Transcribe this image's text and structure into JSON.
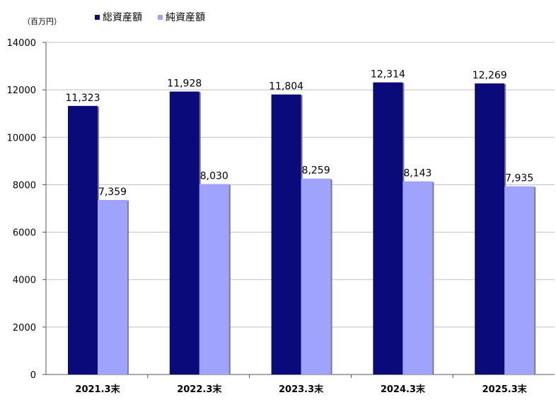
{
  "chart_data": {
    "type": "bar",
    "unit_label": "（百万円）",
    "categories": [
      "2021.3末",
      "2022.3末",
      "2023.3末",
      "2024.3末",
      "2025.3末"
    ],
    "series": [
      {
        "name": "総資産額",
        "color": "#0b0a7a",
        "values": [
          11323,
          11928,
          11804,
          12314,
          12269
        ],
        "labels": [
          "11,323",
          "11,928",
          "11,804",
          "12,314",
          "12,269"
        ]
      },
      {
        "name": "純資産額",
        "color": "#a0a3fb",
        "values": [
          7359,
          8030,
          8259,
          8143,
          7935
        ],
        "labels": [
          "7,359",
          "8,030",
          "8,259",
          "8,143",
          "7,935"
        ]
      }
    ],
    "ylim": [
      0,
      14000
    ],
    "yticks": [
      "0",
      "2000",
      "4000",
      "6000",
      "8000",
      "10000",
      "12000",
      "14000"
    ],
    "grid": true,
    "legend_position": "top"
  }
}
